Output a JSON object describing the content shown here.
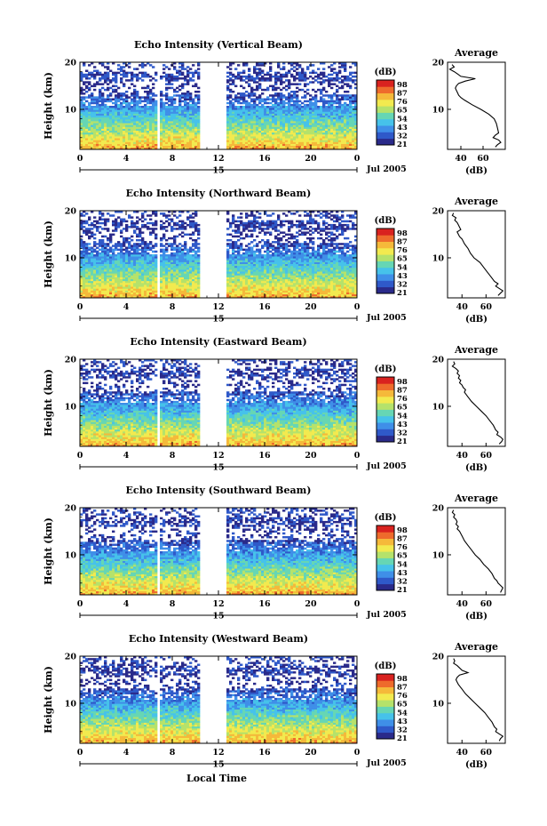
{
  "chart_data": [
    {
      "type": "heatmap",
      "title": "Echo Intensity (Vertical Beam)",
      "ylabel": "Height (km)",
      "y_ticks": [
        "20",
        "10"
      ],
      "ylim": [
        1.5,
        20
      ],
      "x_ticks": [
        "0",
        "4",
        "8",
        "12",
        "16",
        "20",
        "0"
      ],
      "xlim": [
        0,
        24
      ],
      "day_label": "15",
      "date_label": "Jul 2005",
      "data_gaps_hours": [
        [
          6.7,
          7.0
        ],
        [
          10.4,
          12.8
        ]
      ],
      "colorbar": {
        "unit": "(dB)",
        "levels": [
          "98",
          "87",
          "76",
          "65",
          "54",
          "43",
          "32",
          "21"
        ],
        "range": [
          21,
          98
        ]
      },
      "average_profile": {
        "title": "Average",
        "xlabel": "(dB)",
        "x_ticks": [
          "40",
          "60"
        ],
        "xlim": [
          28,
          80
        ],
        "y_ticks": [
          "20",
          "10"
        ],
        "height_km": [
          19.5,
          19.0,
          18.5,
          18.0,
          17.5,
          17.0,
          16.5,
          16.0,
          15.5,
          15.0,
          14.5,
          14.0,
          13.5,
          13.0,
          12.5,
          12.0,
          11.0,
          10.0,
          9.0,
          8.0,
          7.0,
          6.0,
          5.0,
          4.5,
          4.0,
          3.5,
          3.0,
          2.5,
          2.0
        ],
        "value_db": [
          32,
          34,
          30,
          34,
          37,
          40,
          53,
          44,
          38,
          36,
          35,
          36,
          37,
          38,
          40,
          43,
          50,
          58,
          65,
          70,
          72,
          73,
          74,
          71,
          69,
          74,
          76,
          73,
          71
        ]
      }
    },
    {
      "type": "heatmap",
      "title": "Echo Intensity (Northward Beam)",
      "ylabel": "Height (km)",
      "y_ticks": [
        "20",
        "10"
      ],
      "ylim": [
        1.5,
        20
      ],
      "x_ticks": [
        "0",
        "4",
        "8",
        "12",
        "16",
        "20",
        "0"
      ],
      "xlim": [
        0,
        24
      ],
      "day_label": "15",
      "date_label": "Jul 2005",
      "data_gaps_hours": [
        [
          6.7,
          7.0
        ],
        [
          10.4,
          12.8
        ]
      ],
      "colorbar": {
        "unit": "(dB)",
        "levels": [
          "98",
          "87",
          "76",
          "65",
          "54",
          "43",
          "32",
          "21"
        ],
        "range": [
          21,
          98
        ]
      },
      "average_profile": {
        "title": "Average",
        "xlabel": "(dB)",
        "x_ticks": [
          "40",
          "60"
        ],
        "xlim": [
          28,
          76
        ],
        "y_ticks": [
          "20",
          "10"
        ],
        "height_km": [
          19.5,
          19.0,
          18.5,
          18.0,
          17.5,
          17.0,
          16.5,
          16.0,
          15.5,
          15.0,
          14.5,
          14.0,
          13.0,
          12.0,
          11.0,
          10.0,
          9.0,
          8.0,
          7.0,
          6.0,
          5.0,
          4.5,
          4.0,
          3.5,
          3.0,
          2.5,
          2.0
        ],
        "value_db": [
          33,
          32,
          35,
          34,
          36,
          37,
          38,
          39,
          36,
          37,
          38,
          40,
          42,
          45,
          47,
          50,
          55,
          58,
          61,
          64,
          67,
          70,
          68,
          71,
          74,
          72,
          70
        ]
      }
    },
    {
      "type": "heatmap",
      "title": "Echo Intensity (Eastward Beam)",
      "ylabel": "Height (km)",
      "y_ticks": [
        "20",
        "10"
      ],
      "ylim": [
        1.5,
        20
      ],
      "x_ticks": [
        "0",
        "4",
        "8",
        "12",
        "16",
        "20",
        "0"
      ],
      "xlim": [
        0,
        24
      ],
      "day_label": "15",
      "date_label": "Jul 2005",
      "data_gaps_hours": [
        [
          6.7,
          7.0
        ],
        [
          10.4,
          12.8
        ]
      ],
      "colorbar": {
        "unit": "(dB)",
        "levels": [
          "98",
          "87",
          "76",
          "65",
          "54",
          "43",
          "32",
          "21"
        ],
        "range": [
          21,
          98
        ]
      },
      "average_profile": {
        "title": "Average",
        "xlabel": "(dB)",
        "x_ticks": [
          "40",
          "60"
        ],
        "xlim": [
          28,
          76
        ],
        "y_ticks": [
          "20",
          "10"
        ],
        "height_km": [
          19.5,
          19.0,
          18.5,
          18.0,
          17.5,
          17.0,
          16.5,
          16.0,
          15.5,
          15.0,
          14.5,
          14.0,
          13.5,
          13.0,
          12.0,
          11.0,
          10.0,
          9.0,
          8.0,
          7.0,
          6.0,
          5.0,
          4.5,
          4.0,
          3.5,
          3.0,
          2.5,
          2.0
        ],
        "value_db": [
          33,
          34,
          32,
          35,
          37,
          36,
          38,
          37,
          39,
          38,
          40,
          41,
          43,
          42,
          45,
          48,
          52,
          56,
          60,
          63,
          66,
          68,
          70,
          69,
          72,
          74,
          73,
          71
        ]
      }
    },
    {
      "type": "heatmap",
      "title": "Echo Intensity (Southward Beam)",
      "ylabel": "Height (km)",
      "y_ticks": [
        "20",
        "10"
      ],
      "ylim": [
        1.5,
        20
      ],
      "x_ticks": [
        "0",
        "4",
        "8",
        "12",
        "16",
        "20",
        "0"
      ],
      "xlim": [
        0,
        24
      ],
      "day_label": "15",
      "date_label": "Jul 2005",
      "data_gaps_hours": [
        [
          6.7,
          7.0
        ],
        [
          10.4,
          12.8
        ]
      ],
      "colorbar": {
        "unit": "(dB)",
        "levels": [
          "98",
          "87",
          "76",
          "65",
          "54",
          "43",
          "32",
          "21"
        ],
        "range": [
          21,
          98
        ]
      },
      "average_profile": {
        "title": "Average",
        "xlabel": "(dB)",
        "x_ticks": [
          "40",
          "60"
        ],
        "xlim": [
          28,
          76
        ],
        "y_ticks": [
          "20",
          "10"
        ],
        "height_km": [
          19.5,
          19.0,
          18.5,
          18.0,
          17.5,
          17.0,
          16.5,
          16.0,
          15.5,
          15.0,
          14.5,
          14.0,
          13.0,
          12.0,
          11.0,
          10.0,
          9.0,
          8.0,
          7.0,
          6.0,
          5.0,
          4.5,
          4.0,
          3.5,
          3.0,
          2.5,
          2.0
        ],
        "value_db": [
          33,
          32,
          34,
          33,
          35,
          36,
          35,
          37,
          36,
          38,
          39,
          40,
          42,
          45,
          48,
          51,
          55,
          58,
          62,
          65,
          67,
          69,
          70,
          72,
          74,
          73,
          72
        ]
      }
    },
    {
      "type": "heatmap",
      "title": "Echo Intensity (Westward Beam)",
      "ylabel": "Height (km)",
      "y_ticks": [
        "20",
        "10"
      ],
      "ylim": [
        1.5,
        20
      ],
      "x_ticks": [
        "0",
        "4",
        "8",
        "12",
        "16",
        "20",
        "0"
      ],
      "xlim": [
        0,
        24
      ],
      "day_label": "15",
      "date_label": "Jul 2005",
      "xlabel": "Local Time",
      "data_gaps_hours": [
        [
          6.7,
          7.0
        ],
        [
          10.4,
          12.8
        ]
      ],
      "colorbar": {
        "unit": "(dB)",
        "levels": [
          "98",
          "87",
          "76",
          "65",
          "54",
          "43",
          "32",
          "21"
        ],
        "range": [
          21,
          98
        ]
      },
      "average_profile": {
        "title": "Average",
        "xlabel": "(dB)",
        "x_ticks": [
          "40",
          "60"
        ],
        "xlim": [
          28,
          76
        ],
        "y_ticks": [
          "20",
          "10"
        ],
        "height_km": [
          19.5,
          19.0,
          18.5,
          18.0,
          17.5,
          17.0,
          16.5,
          16.0,
          15.5,
          15.0,
          14.5,
          14.0,
          13.0,
          12.0,
          11.0,
          10.0,
          9.0,
          8.0,
          7.0,
          6.0,
          5.0,
          4.5,
          4.0,
          3.5,
          3.0,
          2.5,
          2.0
        ],
        "value_db": [
          33,
          34,
          33,
          36,
          38,
          40,
          45,
          38,
          36,
          35,
          36,
          37,
          40,
          43,
          47,
          51,
          55,
          59,
          62,
          65,
          67,
          69,
          68,
          71,
          74,
          72,
          71
        ]
      }
    }
  ],
  "colors": {
    "colormap": [
      "#2a2a8a",
      "#2f59c9",
      "#3f8fe8",
      "#46c2ea",
      "#66d6b4",
      "#b5e26b",
      "#f2ea4f",
      "#f5b93a",
      "#ee6b2c",
      "#d9221f"
    ],
    "axis": "#000000"
  }
}
